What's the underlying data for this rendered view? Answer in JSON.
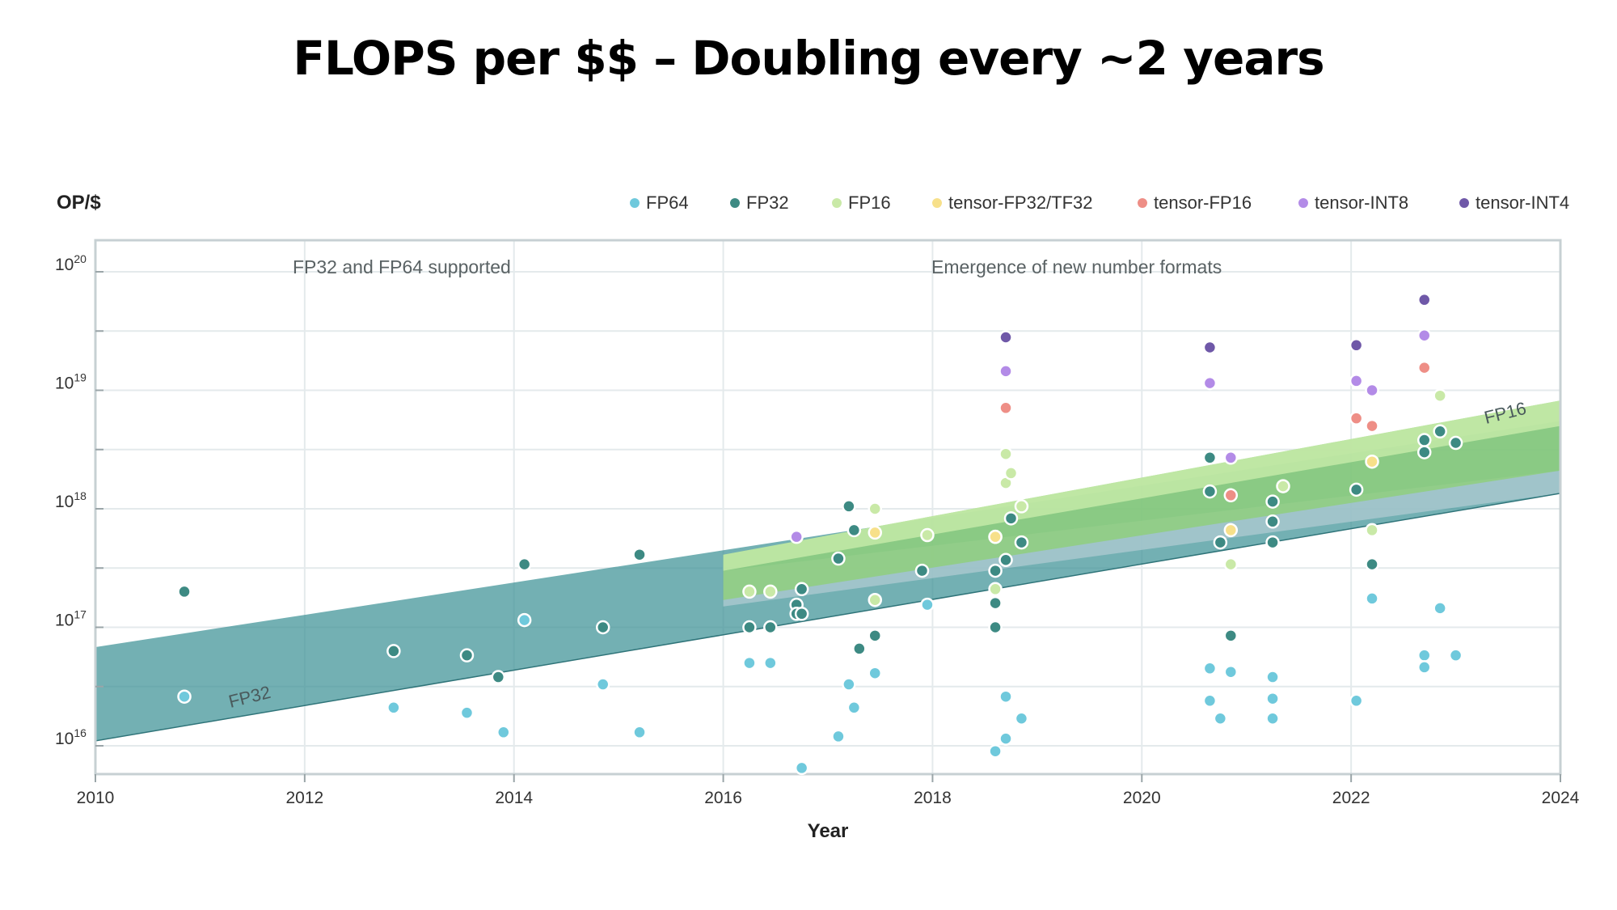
{
  "slide": {
    "title": "FLOPS per $$ – Doubling every ~2 years"
  },
  "chart_data": {
    "type": "scatter",
    "xlabel": "Year",
    "ylabel": "OP/$",
    "xlim": [
      2010,
      2024
    ],
    "ylim": [
      1e+16,
      1e+20
    ],
    "yscale": "log",
    "grid": true,
    "legend_position": "top-right",
    "x_ticks": [
      "2010",
      "2012",
      "2014",
      "2016",
      "2018",
      "2020",
      "2022",
      "2024"
    ],
    "y_ticks": [
      {
        "value": 1e+16,
        "base": "10",
        "exp": "16"
      },
      {
        "value": 1e+17,
        "base": "10",
        "exp": "17"
      },
      {
        "value": 1e+18,
        "base": "10",
        "exp": "18"
      },
      {
        "value": 1e+19,
        "base": "10",
        "exp": "19"
      },
      {
        "value": 1e+20,
        "base": "10",
        "exp": "20"
      }
    ],
    "annotations": [
      {
        "text": "FP32 and FP64 supported"
      },
      {
        "text": "Emergence of new number formats"
      }
    ],
    "bands": [
      {
        "label": "FP32",
        "color": "#3d9196",
        "x": [
          2010,
          2024
        ],
        "lower": [
          1.1e+16,
          1.35e+18
        ],
        "upper": [
          6.8e+16,
          5.5e+18
        ]
      },
      {
        "label": "",
        "color": "#a9c8d0",
        "x": [
          2016,
          2024
        ],
        "lower": [
          1.5e+17,
          1.35e+18
        ],
        "upper": [
          3e+17,
          2.1e+18
        ]
      },
      {
        "label": "FP16",
        "color": "#8fd07a",
        "x": [
          2016,
          2024
        ],
        "lower": [
          1.7e+17,
          2.1e+18
        ],
        "upper": [
          4.1e+17,
          8.2e+18
        ]
      },
      {
        "label": "",
        "color": "#c6eaa8",
        "x": [
          2016,
          2024
        ],
        "lower": [
          3e+17,
          5e+18
        ],
        "upper": [
          4.1e+17,
          8.2e+18
        ]
      }
    ],
    "series": [
      {
        "name": "FP64",
        "color": "#6fc9dc",
        "points": [
          [
            2010.85,
            2.6e+16
          ],
          [
            2012.85,
            2.1e+16
          ],
          [
            2013.55,
            1.9e+16
          ],
          [
            2013.9,
            1.3e+16
          ],
          [
            2014.1,
            1.15e+17
          ],
          [
            2014.85,
            3.3e+16
          ],
          [
            2015.2,
            1.3e+16
          ],
          [
            2016.25,
            5e+16
          ],
          [
            2016.45,
            5e+16
          ],
          [
            2016.75,
            6500000000000000.0
          ],
          [
            2017.1,
            1.2e+16
          ],
          [
            2017.2,
            3.3e+16
          ],
          [
            2017.25,
            2.1e+16
          ],
          [
            2017.45,
            4.1e+16
          ],
          [
            2017.95,
            1.55e+17
          ],
          [
            2018.6,
            9000000000000000.0
          ],
          [
            2018.7,
            2.6e+16
          ],
          [
            2018.7,
            1.15e+16
          ],
          [
            2018.85,
            1.7e+16
          ],
          [
            2020.65,
            4.5e+16
          ],
          [
            2020.65,
            2.4e+16
          ],
          [
            2020.75,
            1.7e+16
          ],
          [
            2020.85,
            4.2e+16
          ],
          [
            2021.25,
            3.8e+16
          ],
          [
            2021.25,
            2.5e+16
          ],
          [
            2021.25,
            1.7e+16
          ],
          [
            2022.05,
            2.4e+16
          ],
          [
            2022.2,
            1.75e+17
          ],
          [
            2022.7,
            5.8e+16
          ],
          [
            2022.7,
            4.6e+16
          ],
          [
            2022.85,
            1.45e+17
          ],
          [
            2023.0,
            5.8e+16
          ]
        ]
      },
      {
        "name": "FP32",
        "color": "#3d8a83",
        "points": [
          [
            2010.85,
            2e+17
          ],
          [
            2012.85,
            6.3e+16
          ],
          [
            2013.55,
            5.8e+16
          ],
          [
            2013.85,
            3.8e+16
          ],
          [
            2014.1,
            3.4e+17
          ],
          [
            2014.85,
            1e+17
          ],
          [
            2015.2,
            4.1e+17
          ],
          [
            2016.25,
            1e+17
          ],
          [
            2016.45,
            1e+17
          ],
          [
            2016.7,
            1.55e+17
          ],
          [
            2016.7,
            1.3e+17
          ],
          [
            2016.75,
            1.3e+17
          ],
          [
            2016.75,
            2.1e+17
          ],
          [
            2017.1,
            3.8e+17
          ],
          [
            2017.2,
            1.05e+18
          ],
          [
            2017.25,
            6.6e+17
          ],
          [
            2017.3,
            6.6e+16
          ],
          [
            2017.45,
            8.5e+16
          ],
          [
            2017.9,
            3e+17
          ],
          [
            2018.6,
            3e+17
          ],
          [
            2018.6,
            1.6e+17
          ],
          [
            2018.6,
            1e+17
          ],
          [
            2018.7,
            3.7e+17
          ],
          [
            2018.75,
            8.3e+17
          ],
          [
            2018.85,
            5.2e+17
          ],
          [
            2020.65,
            2.7e+18
          ],
          [
            2020.65,
            1.4e+18
          ],
          [
            2020.75,
            5.2e+17
          ],
          [
            2020.85,
            8.5e+16
          ],
          [
            2021.25,
            1.15e+18
          ],
          [
            2021.25,
            7.8e+17
          ],
          [
            2021.25,
            5.2e+17
          ],
          [
            2022.05,
            1.45e+18
          ],
          [
            2022.2,
            3.4e+17
          ],
          [
            2022.7,
            3.8e+18
          ],
          [
            2022.7,
            3e+18
          ],
          [
            2022.85,
            4.5e+18
          ],
          [
            2023.0,
            3.6e+18
          ]
        ]
      },
      {
        "name": "FP16",
        "color": "#c9e9a7",
        "points": [
          [
            2016.25,
            2e+17
          ],
          [
            2016.45,
            2e+17
          ],
          [
            2017.45,
            1e+18
          ],
          [
            2017.45,
            1.7e+17
          ],
          [
            2017.95,
            6e+17
          ],
          [
            2018.6,
            5.8e+17
          ],
          [
            2018.6,
            2.1e+17
          ],
          [
            2018.7,
            2.9e+18
          ],
          [
            2018.7,
            1.65e+18
          ],
          [
            2018.75,
            2e+18
          ],
          [
            2018.85,
            1.05e+18
          ],
          [
            2020.85,
            3.4e+17
          ],
          [
            2021.35,
            1.55e+18
          ],
          [
            2022.2,
            6.6e+17
          ],
          [
            2022.85,
            9e+18
          ]
        ]
      },
      {
        "name": "tensor-FP32/TF32",
        "color": "#f7e08a",
        "points": [
          [
            2017.45,
            6.3e+17
          ],
          [
            2018.6,
            5.8e+17
          ],
          [
            2020.85,
            6.6e+17
          ],
          [
            2022.2,
            2.5e+18
          ]
        ]
      },
      {
        "name": "tensor-FP16",
        "color": "#ee8e86",
        "points": [
          [
            2018.7,
            7.1e+18
          ],
          [
            2020.85,
            1.3e+18
          ],
          [
            2022.05,
            5.8e+18
          ],
          [
            2022.2,
            5e+18
          ],
          [
            2022.7,
            1.55e+19
          ]
        ]
      },
      {
        "name": "tensor-INT8",
        "color": "#b38be7",
        "points": [
          [
            2016.7,
            5.8e+17
          ],
          [
            2018.7,
            1.45e+19
          ],
          [
            2020.65,
            1.15e+19
          ],
          [
            2020.85,
            2.7e+18
          ],
          [
            2022.05,
            1.2e+19
          ],
          [
            2022.2,
            1e+19
          ],
          [
            2022.7,
            2.9e+19
          ]
        ]
      },
      {
        "name": "tensor-INT4",
        "color": "#6f58a8",
        "points": [
          [
            2018.7,
            2.8e+19
          ],
          [
            2020.65,
            2.3e+19
          ],
          [
            2022.05,
            2.4e+19
          ],
          [
            2022.7,
            5.8e+19
          ]
        ]
      }
    ]
  }
}
